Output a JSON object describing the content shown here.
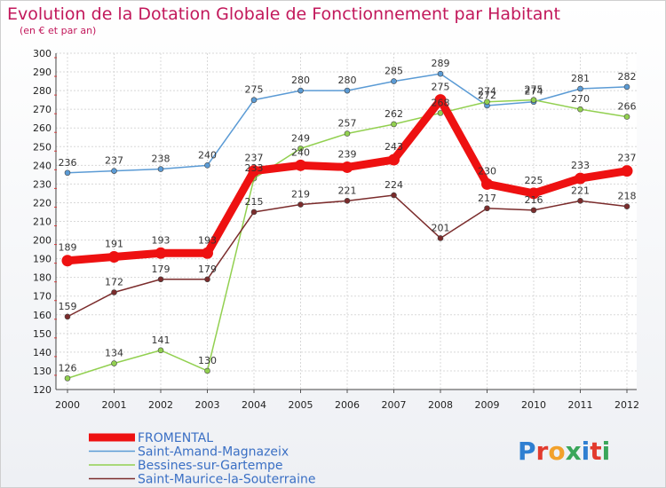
{
  "chart_data": {
    "type": "line",
    "title": "Evolution de la Dotation Globale de Fonctionnement par Habitant",
    "subtitle": "(en € et par an)",
    "x": [
      "2000",
      "2001",
      "2002",
      "2003",
      "2004",
      "2005",
      "2006",
      "2007",
      "2008",
      "2009",
      "2010",
      "2011",
      "2012"
    ],
    "ylim": [
      120,
      300
    ],
    "yticks": [
      120,
      130,
      140,
      150,
      160,
      170,
      180,
      190,
      200,
      210,
      220,
      230,
      240,
      250,
      260,
      270,
      280,
      290,
      300
    ],
    "series": [
      {
        "name": "Saint-Amand-Magnazeix",
        "color": "#5b9bd5",
        "values": [
          236,
          237,
          238,
          240,
          275,
          280,
          280,
          285,
          289,
          272,
          274,
          281,
          282
        ]
      },
      {
        "name": "Bessines-sur-Gartempe",
        "color": "#92d050",
        "values": [
          126,
          134,
          141,
          130,
          233,
          249,
          257,
          262,
          268,
          274,
          275,
          270,
          266
        ]
      },
      {
        "name": "Saint-Maurice-la-Souterraine",
        "color": "#7b2c2c",
        "values": [
          159,
          172,
          179,
          179,
          215,
          219,
          221,
          224,
          201,
          217,
          216,
          221,
          218
        ]
      },
      {
        "name": "FROMENTAL",
        "color": "#ee1111",
        "values": [
          189,
          191,
          193,
          193,
          237,
          240,
          239,
          243,
          275,
          230,
          225,
          233,
          237
        ]
      }
    ],
    "legend": [
      "FROMENTAL",
      "Saint-Amand-Magnazeix",
      "Bessines-sur-Gartempe",
      "Saint-Maurice-la-Souterraine"
    ],
    "grid": true
  },
  "brand": {
    "logo_text": "Proxiti"
  }
}
